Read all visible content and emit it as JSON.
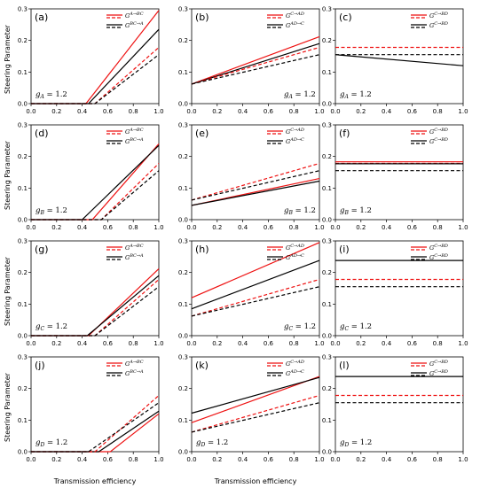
{
  "figure": {
    "ylabel": "Steering Parameter",
    "xlabel": "Transmission efficiency"
  },
  "styles": {
    "red": "#ee1111",
    "black": "#000000"
  },
  "chart_data": [
    {
      "panel": "(a)",
      "type": "line",
      "xlim": [
        0,
        1
      ],
      "ylim": [
        0,
        0.3
      ],
      "yticks": [
        "0.0",
        "0.1",
        "0.2",
        "0.3"
      ],
      "xticks": [
        "0.0",
        "0.2",
        "0.4",
        "0.6",
        "0.8",
        "1.0"
      ],
      "g_label": "g_A = 1.2",
      "g_label_pos": "bottom-left",
      "legend": [
        {
          "label": "G^{A→BC}",
          "color": "#ee1111"
        },
        {
          "label": "G^{BC→A}",
          "color": "#000000"
        }
      ],
      "series": [
        {
          "color": "#ee1111",
          "style": "solid",
          "x": [
            0,
            0.43,
            1
          ],
          "y": [
            0,
            0,
            0.295
          ]
        },
        {
          "color": "#000000",
          "style": "solid",
          "x": [
            0,
            0.45,
            1
          ],
          "y": [
            0,
            0,
            0.235
          ]
        },
        {
          "color": "#ee1111",
          "style": "dashed",
          "x": [
            0,
            0.5,
            1
          ],
          "y": [
            0,
            0,
            0.178
          ]
        },
        {
          "color": "#000000",
          "style": "dashed",
          "x": [
            0,
            0.5,
            1
          ],
          "y": [
            0,
            0,
            0.155
          ]
        }
      ]
    },
    {
      "panel": "(b)",
      "type": "line",
      "xlim": [
        0,
        1
      ],
      "ylim": [
        0,
        0.3
      ],
      "yticks": [
        "0.0",
        "0.1",
        "0.2",
        "0.3"
      ],
      "xticks": [
        "0.0",
        "0.2",
        "0.4",
        "0.6",
        "0.8",
        "1.0"
      ],
      "g_label": "g_A = 1.2",
      "g_label_pos": "bottom-right",
      "legend": [
        {
          "label": "G^{C→AD}",
          "color": "#ee1111"
        },
        {
          "label": "G^{AD→C}",
          "color": "#000000"
        }
      ],
      "series": [
        {
          "color": "#ee1111",
          "style": "solid",
          "x": [
            0,
            1
          ],
          "y": [
            0.062,
            0.212
          ]
        },
        {
          "color": "#000000",
          "style": "solid",
          "x": [
            0,
            1
          ],
          "y": [
            0.062,
            0.19
          ]
        },
        {
          "color": "#ee1111",
          "style": "dashed",
          "x": [
            0,
            1
          ],
          "y": [
            0.062,
            0.178
          ]
        },
        {
          "color": "#000000",
          "style": "dashed",
          "x": [
            0,
            1
          ],
          "y": [
            0.062,
            0.155
          ]
        }
      ]
    },
    {
      "panel": "(c)",
      "type": "line",
      "xlim": [
        0,
        1
      ],
      "ylim": [
        0,
        0.3
      ],
      "yticks": [
        "0.0",
        "0.1",
        "0.2",
        "0.3"
      ],
      "xticks": [
        "0.0",
        "0.2",
        "0.4",
        "0.6",
        "0.8",
        "1.0"
      ],
      "g_label": "g_A = 1.2",
      "g_label_pos": "bottom-left",
      "legend": [
        {
          "label": "G^{C→BD}",
          "color": "#ee1111"
        },
        {
          "label": "G^{C→BD}",
          "color": "#000000"
        }
      ],
      "series": [
        {
          "color": "#ee1111",
          "style": "dashed",
          "x": [
            0,
            1
          ],
          "y": [
            0.178,
            0.178
          ]
        },
        {
          "color": "#000000",
          "style": "dashed",
          "x": [
            0,
            1
          ],
          "y": [
            0.155,
            0.155
          ]
        },
        {
          "color": "#000000",
          "style": "solid",
          "x": [
            0,
            1
          ],
          "y": [
            0.155,
            0.12
          ]
        }
      ]
    },
    {
      "panel": "(d)",
      "type": "line",
      "xlim": [
        0,
        1
      ],
      "ylim": [
        0,
        0.3
      ],
      "yticks": [
        "0.0",
        "0.1",
        "0.2",
        "0.3"
      ],
      "xticks": [
        "0.0",
        "0.2",
        "0.4",
        "0.6",
        "0.8",
        "1.0"
      ],
      "g_label": "g_B = 1.2",
      "g_label_pos": "bottom-left",
      "legend": [
        {
          "label": "G^{A→BC}",
          "color": "#ee1111"
        },
        {
          "label": "G^{BC→A}",
          "color": "#000000"
        }
      ],
      "series": [
        {
          "color": "#ee1111",
          "style": "solid",
          "x": [
            0,
            0.48,
            1
          ],
          "y": [
            0,
            0,
            0.24
          ]
        },
        {
          "color": "#000000",
          "style": "solid",
          "x": [
            0,
            0.4,
            1
          ],
          "y": [
            0,
            0,
            0.235
          ]
        },
        {
          "color": "#ee1111",
          "style": "dashed",
          "x": [
            0,
            0.55,
            1
          ],
          "y": [
            0,
            0,
            0.178
          ]
        },
        {
          "color": "#000000",
          "style": "dashed",
          "x": [
            0,
            0.55,
            1
          ],
          "y": [
            0,
            0,
            0.155
          ]
        }
      ]
    },
    {
      "panel": "(e)",
      "type": "line",
      "xlim": [
        0,
        1
      ],
      "ylim": [
        0,
        0.3
      ],
      "yticks": [
        "0.0",
        "0.1",
        "0.2",
        "0.3"
      ],
      "xticks": [
        "0.0",
        "0.2",
        "0.4",
        "0.6",
        "0.8",
        "1.0"
      ],
      "g_label": "g_B = 1.2",
      "g_label_pos": "bottom-right",
      "legend": [
        {
          "label": "G^{C→AD}",
          "color": "#ee1111"
        },
        {
          "label": "G^{AD→C}",
          "color": "#000000"
        }
      ],
      "series": [
        {
          "color": "#ee1111",
          "style": "solid",
          "x": [
            0,
            1
          ],
          "y": [
            0.045,
            0.13
          ]
        },
        {
          "color": "#000000",
          "style": "solid",
          "x": [
            0,
            1
          ],
          "y": [
            0.045,
            0.122
          ]
        },
        {
          "color": "#ee1111",
          "style": "dashed",
          "x": [
            0,
            1
          ],
          "y": [
            0.062,
            0.178
          ]
        },
        {
          "color": "#000000",
          "style": "dashed",
          "x": [
            0,
            1
          ],
          "y": [
            0.062,
            0.155
          ]
        }
      ]
    },
    {
      "panel": "(f)",
      "type": "line",
      "xlim": [
        0,
        1
      ],
      "ylim": [
        0,
        0.3
      ],
      "yticks": [
        "0.0",
        "0.1",
        "0.2",
        "0.3"
      ],
      "xticks": [
        "0.0",
        "0.2",
        "0.4",
        "0.6",
        "0.8",
        "1.0"
      ],
      "g_label": "g_B = 1.2",
      "g_label_pos": "bottom-left",
      "legend": [
        {
          "label": "G^{C→BD}",
          "color": "#ee1111"
        },
        {
          "label": "G^{C→BD}",
          "color": "#000000"
        }
      ],
      "series": [
        {
          "color": "#ee1111",
          "style": "dashed",
          "x": [
            0,
            1
          ],
          "y": [
            0.178,
            0.178
          ]
        },
        {
          "color": "#000000",
          "style": "dashed",
          "x": [
            0,
            1
          ],
          "y": [
            0.155,
            0.155
          ]
        },
        {
          "color": "#ee1111",
          "style": "solid",
          "x": [
            0,
            1
          ],
          "y": [
            0.183,
            0.183
          ]
        },
        {
          "color": "#000000",
          "style": "solid",
          "x": [
            0,
            1
          ],
          "y": [
            0.177,
            0.177
          ]
        }
      ]
    },
    {
      "panel": "(g)",
      "type": "line",
      "xlim": [
        0,
        1
      ],
      "ylim": [
        0,
        0.3
      ],
      "yticks": [
        "0.0",
        "0.1",
        "0.2",
        "0.3"
      ],
      "xticks": [
        "0.0",
        "0.2",
        "0.4",
        "0.6",
        "0.8",
        "1.0"
      ],
      "g_label": "g_C = 1.2",
      "g_label_pos": "bottom-left",
      "legend": [
        {
          "label": "G^{A→BC}",
          "color": "#ee1111"
        },
        {
          "label": "G^{BC→A}",
          "color": "#000000"
        }
      ],
      "series": [
        {
          "color": "#ee1111",
          "style": "solid",
          "x": [
            0,
            0.45,
            1
          ],
          "y": [
            0,
            0,
            0.212
          ]
        },
        {
          "color": "#000000",
          "style": "solid",
          "x": [
            0,
            0.44,
            1
          ],
          "y": [
            0,
            0,
            0.19
          ]
        },
        {
          "color": "#ee1111",
          "style": "dashed",
          "x": [
            0,
            0.5,
            1
          ],
          "y": [
            0,
            0,
            0.178
          ]
        },
        {
          "color": "#000000",
          "style": "dashed",
          "x": [
            0,
            0.5,
            1
          ],
          "y": [
            0,
            0,
            0.155
          ]
        }
      ]
    },
    {
      "panel": "(h)",
      "type": "line",
      "xlim": [
        0,
        1
      ],
      "ylim": [
        0,
        0.3
      ],
      "yticks": [
        "0.0",
        "0.1",
        "0.2",
        "0.3"
      ],
      "xticks": [
        "0.0",
        "0.2",
        "0.4",
        "0.6",
        "0.8",
        "1.0"
      ],
      "g_label": "g_C = 1.2",
      "g_label_pos": "bottom-right",
      "legend": [
        {
          "label": "G^{C→AD}",
          "color": "#ee1111"
        },
        {
          "label": "G^{AD→C}",
          "color": "#000000"
        }
      ],
      "series": [
        {
          "color": "#ee1111",
          "style": "solid",
          "x": [
            0,
            1
          ],
          "y": [
            0.12,
            0.295
          ]
        },
        {
          "color": "#000000",
          "style": "solid",
          "x": [
            0,
            1
          ],
          "y": [
            0.085,
            0.238
          ]
        },
        {
          "color": "#ee1111",
          "style": "dashed",
          "x": [
            0,
            1
          ],
          "y": [
            0.062,
            0.178
          ]
        },
        {
          "color": "#000000",
          "style": "dashed",
          "x": [
            0,
            1
          ],
          "y": [
            0.062,
            0.155
          ]
        }
      ]
    },
    {
      "panel": "(i)",
      "type": "line",
      "xlim": [
        0,
        1
      ],
      "ylim": [
        0,
        0.3
      ],
      "yticks": [
        "0.0",
        "0.1",
        "0.2",
        "0.3"
      ],
      "xticks": [
        "0.0",
        "0.2",
        "0.4",
        "0.6",
        "0.8",
        "1.0"
      ],
      "g_label": "g_C = 1.2",
      "g_label_pos": "bottom-left",
      "legend": [
        {
          "label": "G^{C→BD}",
          "color": "#ee1111"
        },
        {
          "label": "G^{C→BD}",
          "color": "#000000"
        }
      ],
      "series": [
        {
          "color": "#000000",
          "style": "solid",
          "x": [
            0,
            1
          ],
          "y": [
            0.238,
            0.238
          ]
        },
        {
          "color": "#ee1111",
          "style": "dashed",
          "x": [
            0,
            1
          ],
          "y": [
            0.178,
            0.178
          ]
        },
        {
          "color": "#000000",
          "style": "dashed",
          "x": [
            0,
            1
          ],
          "y": [
            0.155,
            0.155
          ]
        }
      ]
    },
    {
      "panel": "(j)",
      "type": "line",
      "xlim": [
        0,
        1
      ],
      "ylim": [
        0,
        0.3
      ],
      "yticks": [
        "0.0",
        "0.1",
        "0.2",
        "0.3"
      ],
      "xticks": [
        "0.0",
        "0.2",
        "0.4",
        "0.6",
        "0.8",
        "1.0"
      ],
      "g_label": "g_D = 1.2",
      "g_label_pos": "bottom-left",
      "legend": [
        {
          "label": "G^{A→BC}",
          "color": "#ee1111"
        },
        {
          "label": "G^{BC→A}",
          "color": "#000000"
        }
      ],
      "series": [
        {
          "color": "#ee1111",
          "style": "solid",
          "x": [
            0,
            0.62,
            1
          ],
          "y": [
            0,
            0,
            0.12
          ]
        },
        {
          "color": "#000000",
          "style": "solid",
          "x": [
            0,
            0.53,
            1
          ],
          "y": [
            0,
            0,
            0.128
          ]
        },
        {
          "color": "#ee1111",
          "style": "dashed",
          "x": [
            0,
            0.5,
            1
          ],
          "y": [
            0,
            0,
            0.178
          ]
        },
        {
          "color": "#000000",
          "style": "dashed",
          "x": [
            0,
            0.45,
            1
          ],
          "y": [
            0,
            0,
            0.155
          ]
        }
      ]
    },
    {
      "panel": "(k)",
      "type": "line",
      "xlim": [
        0,
        1
      ],
      "ylim": [
        0,
        0.3
      ],
      "yticks": [
        "0.0",
        "0.1",
        "0.2",
        "0.3"
      ],
      "xticks": [
        "0.0",
        "0.2",
        "0.4",
        "0.6",
        "0.8",
        "1.0"
      ],
      "g_label": "g_D = 1.2",
      "g_label_pos": "bottom-left",
      "legend": [
        {
          "label": "G^{C→AD}",
          "color": "#ee1111"
        },
        {
          "label": "G^{AD→C}",
          "color": "#000000"
        }
      ],
      "series": [
        {
          "color": "#ee1111",
          "style": "solid",
          "x": [
            0,
            1
          ],
          "y": [
            0.092,
            0.238
          ]
        },
        {
          "color": "#000000",
          "style": "solid",
          "x": [
            0,
            1
          ],
          "y": [
            0.122,
            0.235
          ]
        },
        {
          "color": "#ee1111",
          "style": "dashed",
          "x": [
            0,
            1
          ],
          "y": [
            0.062,
            0.178
          ]
        },
        {
          "color": "#000000",
          "style": "dashed",
          "x": [
            0,
            1
          ],
          "y": [
            0.062,
            0.155
          ]
        }
      ]
    },
    {
      "panel": "(l)",
      "type": "line",
      "xlim": [
        0,
        1
      ],
      "ylim": [
        0,
        0.3
      ],
      "yticks": [
        "0.0",
        "0.1",
        "0.2",
        "0.3"
      ],
      "xticks": [
        "0.0",
        "0.2",
        "0.4",
        "0.6",
        "0.8",
        "1.0"
      ],
      "g_label": "g_D = 1.2",
      "g_label_pos": "bottom-left",
      "legend": [
        {
          "label": "G^{C→BD}",
          "color": "#ee1111"
        },
        {
          "label": "G^{C→BD}",
          "color": "#000000"
        }
      ],
      "series": [
        {
          "color": "#000000",
          "style": "solid",
          "x": [
            0,
            1
          ],
          "y": [
            0.238,
            0.238
          ]
        },
        {
          "color": "#ee1111",
          "style": "dashed",
          "x": [
            0,
            1
          ],
          "y": [
            0.178,
            0.178
          ]
        },
        {
          "color": "#000000",
          "style": "dashed",
          "x": [
            0,
            1
          ],
          "y": [
            0.155,
            0.155
          ]
        }
      ]
    }
  ]
}
